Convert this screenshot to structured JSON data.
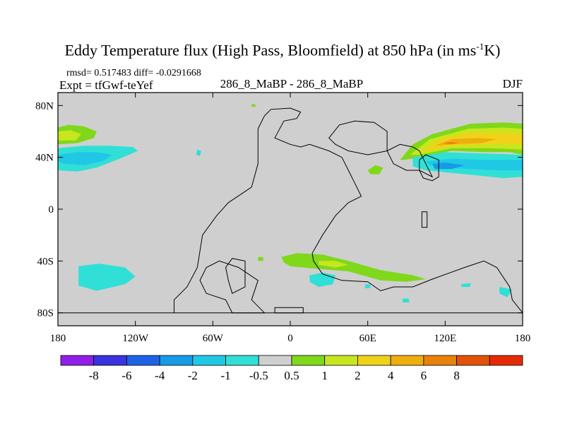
{
  "chart_data": {
    "type": "filled-contour-map",
    "title_main": "Eddy Temperature flux (High Pass, Bloomfield) at 850 hPa (in ms",
    "title_sup": "-1",
    "title_end": "K)",
    "stats": "rmsd= 0.517483 diff= -0.0291668",
    "experiment": "Expt = tfGwf-teYef",
    "center_label": "286_8_MaBP - 286_8_MaBP",
    "season": "DJF",
    "lon_range": [
      -180,
      180
    ],
    "lat_range": [
      -90,
      90
    ],
    "x_ticks": [
      {
        "lon": -180,
        "label": "180"
      },
      {
        "lon": -120,
        "label": "120W"
      },
      {
        "lon": -60,
        "label": "60W"
      },
      {
        "lon": 0,
        "label": "0"
      },
      {
        "lon": 60,
        "label": "60E"
      },
      {
        "lon": 120,
        "label": "120E"
      },
      {
        "lon": 180,
        "label": "180"
      }
    ],
    "y_ticks": [
      {
        "lat": 80,
        "label": "80N"
      },
      {
        "lat": 40,
        "label": "40N"
      },
      {
        "lat": 0,
        "label": "0"
      },
      {
        "lat": -40,
        "label": "40S"
      },
      {
        "lat": -80,
        "label": "80S"
      }
    ],
    "colorbar": {
      "colors": [
        "#8f1fe6",
        "#3a33e0",
        "#1e63e6",
        "#169be6",
        "#20c8e6",
        "#30e0d6",
        "#cfcfcf",
        "#7fd81a",
        "#c8e61e",
        "#f0d21a",
        "#eeae0e",
        "#e8820a",
        "#e25208",
        "#e62a06"
      ],
      "labels": [
        "-8",
        "-6",
        "-4",
        "-2",
        "-1",
        "-0.5",
        "0.5",
        "1",
        "2",
        "4",
        "6",
        "8"
      ]
    },
    "regions": [
      {
        "name": "region-nh-pacific-positive-band",
        "fill": "#7fd81a",
        "points": [
          [
            -180,
            63
          ],
          [
            -172,
            65
          ],
          [
            -160,
            64
          ],
          [
            -150,
            60
          ],
          [
            -152,
            55
          ],
          [
            -165,
            51
          ],
          [
            -180,
            50
          ]
        ]
      },
      {
        "name": "region-nh-pacific-positive-core",
        "fill": "#c8e61e",
        "points": [
          [
            -180,
            60
          ],
          [
            -170,
            61
          ],
          [
            -162,
            58
          ],
          [
            -166,
            53
          ],
          [
            -180,
            53
          ]
        ]
      },
      {
        "name": "region-nh-pacific-negative-band",
        "fill": "#30e0d6",
        "points": [
          [
            -180,
            47
          ],
          [
            -160,
            49
          ],
          [
            -140,
            49
          ],
          [
            -122,
            48
          ],
          [
            -118,
            45
          ],
          [
            -132,
            39
          ],
          [
            -150,
            32
          ],
          [
            -165,
            29
          ],
          [
            -180,
            30
          ]
        ]
      },
      {
        "name": "region-nh-pacific-negative-core",
        "fill": "#20c8e6",
        "points": [
          [
            -180,
            42
          ],
          [
            -165,
            44
          ],
          [
            -150,
            44
          ],
          [
            -138,
            42
          ],
          [
            -145,
            37
          ],
          [
            -160,
            34
          ],
          [
            -175,
            35
          ],
          [
            -180,
            37
          ]
        ]
      },
      {
        "name": "region-nh-small-negative-patch",
        "fill": "#30e0d6",
        "points": [
          [
            -72,
            46
          ],
          [
            -69,
            45
          ],
          [
            -70,
            41
          ],
          [
            -73,
            42
          ]
        ]
      },
      {
        "name": "region-arctic-positive-dot",
        "fill": "#7fd81a",
        "points": [
          [
            -30,
            81
          ],
          [
            -27,
            81
          ],
          [
            -27,
            79
          ],
          [
            -30,
            79
          ]
        ]
      },
      {
        "name": "region-nh-eastern-positive-band",
        "fill": "#7fd81a",
        "points": [
          [
            85,
            38
          ],
          [
            95,
            50
          ],
          [
            110,
            58
          ],
          [
            140,
            66
          ],
          [
            165,
            67
          ],
          [
            180,
            66
          ],
          [
            180,
            42
          ],
          [
            170,
            44
          ],
          [
            150,
            44
          ],
          [
            125,
            45
          ],
          [
            100,
            40
          ],
          [
            88,
            38
          ]
        ]
      },
      {
        "name": "region-nh-eastern-positive-mid",
        "fill": "#c8e61e",
        "points": [
          [
            93,
            42
          ],
          [
            108,
            54
          ],
          [
            138,
            62
          ],
          [
            165,
            63
          ],
          [
            180,
            62
          ],
          [
            180,
            46
          ],
          [
            155,
            47
          ],
          [
            125,
            47
          ],
          [
            100,
            42
          ]
        ]
      },
      {
        "name": "region-nh-eastern-positive-high",
        "fill": "#f0d21a",
        "points": [
          [
            100,
            44
          ],
          [
            118,
            55
          ],
          [
            140,
            59
          ],
          [
            165,
            59
          ],
          [
            180,
            58
          ],
          [
            180,
            50
          ],
          [
            155,
            50
          ],
          [
            125,
            49
          ],
          [
            105,
            45
          ]
        ]
      },
      {
        "name": "region-nh-eastern-positive-core",
        "fill": "#eeae0e",
        "points": [
          [
            112,
            49
          ],
          [
            125,
            54
          ],
          [
            145,
            55
          ],
          [
            160,
            54
          ],
          [
            148,
            51
          ],
          [
            125,
            50
          ]
        ]
      },
      {
        "name": "region-nh-eastern-positive-peak",
        "fill": "#e8820a",
        "points": [
          [
            118,
            51
          ],
          [
            125,
            52
          ],
          [
            130,
            51
          ],
          [
            124,
            50
          ]
        ]
      },
      {
        "name": "region-nh-eastern-negative-band",
        "fill": "#30e0d6",
        "points": [
          [
            95,
            40
          ],
          [
            120,
            44
          ],
          [
            150,
            43
          ],
          [
            180,
            42
          ],
          [
            180,
            25
          ],
          [
            165,
            24
          ],
          [
            145,
            26
          ],
          [
            125,
            28
          ],
          [
            105,
            30
          ],
          [
            95,
            33
          ]
        ]
      },
      {
        "name": "region-nh-eastern-negative-core",
        "fill": "#20c8e6",
        "points": [
          [
            105,
            37
          ],
          [
            125,
            39
          ],
          [
            150,
            38
          ],
          [
            180,
            38
          ],
          [
            180,
            30
          ],
          [
            160,
            30
          ],
          [
            140,
            31
          ],
          [
            120,
            32
          ],
          [
            108,
            34
          ]
        ]
      },
      {
        "name": "region-nh-eastern-negative-deep",
        "fill": "#169be6",
        "points": [
          [
            110,
            35
          ],
          [
            120,
            36
          ],
          [
            135,
            34
          ],
          [
            125,
            31
          ],
          [
            112,
            31
          ]
        ]
      },
      {
        "name": "region-nh-small-positive-patch",
        "fill": "#7fd81a",
        "points": [
          [
            60,
            30
          ],
          [
            66,
            34
          ],
          [
            72,
            32
          ],
          [
            69,
            27
          ],
          [
            62,
            27
          ]
        ]
      },
      {
        "name": "region-sh-positive-band",
        "fill": "#7fd81a",
        "points": [
          [
            -7,
            -37
          ],
          [
            5,
            -34
          ],
          [
            25,
            -35
          ],
          [
            45,
            -40
          ],
          [
            70,
            -47
          ],
          [
            95,
            -51
          ],
          [
            105,
            -54
          ],
          [
            90,
            -56
          ],
          [
            70,
            -55
          ],
          [
            45,
            -48
          ],
          [
            20,
            -46
          ],
          [
            0,
            -44
          ],
          [
            -5,
            -41
          ]
        ]
      },
      {
        "name": "region-sh-positive-core",
        "fill": "#c8e61e",
        "points": [
          [
            22,
            -40
          ],
          [
            35,
            -40
          ],
          [
            45,
            -43
          ],
          [
            35,
            -45
          ],
          [
            22,
            -43
          ]
        ]
      },
      {
        "name": "region-sh-positive-dot",
        "fill": "#7fd81a",
        "points": [
          [
            -25,
            -37
          ],
          [
            -21,
            -37
          ],
          [
            -21,
            -40
          ],
          [
            -25,
            -40
          ]
        ]
      },
      {
        "name": "region-sh-negative-patch-atlantic",
        "fill": "#30e0d6",
        "points": [
          [
            15,
            -51
          ],
          [
            25,
            -49
          ],
          [
            35,
            -51
          ],
          [
            33,
            -58
          ],
          [
            22,
            -60
          ],
          [
            15,
            -56
          ]
        ]
      },
      {
        "name": "region-sh-negative-patch-pacific",
        "fill": "#30e0d6",
        "points": [
          [
            -164,
            -44
          ],
          [
            -148,
            -42
          ],
          [
            -128,
            -45
          ],
          [
            -120,
            -52
          ],
          [
            -128,
            -58
          ],
          [
            -150,
            -63
          ],
          [
            -164,
            -59
          ]
        ]
      },
      {
        "name": "region-sh-negative-dot-1",
        "fill": "#30e0d6",
        "points": [
          [
            58,
            -58
          ],
          [
            62,
            -58
          ],
          [
            62,
            -61
          ],
          [
            58,
            -61
          ]
        ]
      },
      {
        "name": "region-sh-negative-dot-2",
        "fill": "#30e0d6",
        "points": [
          [
            87,
            -69
          ],
          [
            92,
            -69
          ],
          [
            92,
            -72
          ],
          [
            87,
            -72
          ]
        ]
      },
      {
        "name": "region-sh-negative-dot-3",
        "fill": "#30e0d6",
        "points": [
          [
            132,
            -58
          ],
          [
            140,
            -57
          ],
          [
            139,
            -60
          ],
          [
            133,
            -60
          ]
        ]
      },
      {
        "name": "region-sh-negative-dot-4",
        "fill": "#30e0d6",
        "points": [
          [
            162,
            -60
          ],
          [
            172,
            -62
          ],
          [
            168,
            -68
          ],
          [
            162,
            -65
          ]
        ]
      }
    ],
    "outlines": [
      {
        "name": "coastline-main-continent",
        "points": [
          [
            -180,
            -80
          ],
          [
            -90,
            -80
          ],
          [
            -90,
            -70
          ],
          [
            -80,
            -60
          ],
          [
            -72,
            -45
          ],
          [
            -68,
            -20
          ],
          [
            -57,
            -5
          ],
          [
            -48,
            5
          ],
          [
            -30,
            17
          ],
          [
            -25,
            35
          ],
          [
            -25,
            62
          ],
          [
            -20,
            72
          ],
          [
            -15,
            77
          ],
          [
            0,
            78
          ],
          [
            8,
            75
          ],
          [
            5,
            70
          ],
          [
            -5,
            68
          ],
          [
            -12,
            55
          ],
          [
            0,
            50
          ],
          [
            8,
            48
          ],
          [
            15,
            50
          ],
          [
            30,
            45
          ],
          [
            40,
            40
          ],
          [
            45,
            30
          ],
          [
            50,
            20
          ],
          [
            55,
            10
          ],
          [
            45,
            5
          ],
          [
            35,
            -5
          ],
          [
            25,
            -20
          ],
          [
            17,
            -34
          ],
          [
            18,
            -40
          ],
          [
            25,
            -50
          ],
          [
            40,
            -55
          ],
          [
            60,
            -56
          ],
          [
            70,
            -63
          ],
          [
            80,
            -60
          ],
          [
            95,
            -60
          ],
          [
            110,
            -54
          ],
          [
            135,
            -45
          ],
          [
            150,
            -40
          ],
          [
            160,
            -45
          ],
          [
            170,
            -60
          ],
          [
            172,
            -70
          ],
          [
            180,
            -80
          ]
        ]
      },
      {
        "name": "coastline-northern-block",
        "points": [
          [
            30,
            55
          ],
          [
            38,
            65
          ],
          [
            50,
            68
          ],
          [
            65,
            67
          ],
          [
            75,
            60
          ],
          [
            75,
            45
          ],
          [
            80,
            35
          ],
          [
            90,
            30
          ],
          [
            100,
            30
          ],
          [
            110,
            25
          ],
          [
            105,
            35
          ],
          [
            100,
            45
          ],
          [
            95,
            48
          ],
          [
            85,
            50
          ],
          [
            75,
            45
          ],
          [
            60,
            42
          ],
          [
            45,
            45
          ],
          [
            35,
            50
          ]
        ]
      },
      {
        "name": "coastline-southern-inner",
        "points": [
          [
            -65,
            -65
          ],
          [
            -50,
            -70
          ],
          [
            -45,
            -80
          ],
          [
            -20,
            -80
          ],
          [
            -30,
            -70
          ],
          [
            -25,
            -55
          ],
          [
            -40,
            -45
          ],
          [
            -55,
            -40
          ],
          [
            -65,
            -45
          ],
          [
            -70,
            -55
          ]
        ]
      },
      {
        "name": "coastline-southern-peninsula",
        "points": [
          [
            -45,
            -65
          ],
          [
            -35,
            -60
          ],
          [
            -35,
            -40
          ],
          [
            -45,
            -38
          ],
          [
            -50,
            -45
          ],
          [
            -48,
            -55
          ]
        ]
      },
      {
        "name": "coastline-southern-strip",
        "points": [
          [
            -12,
            -80
          ],
          [
            10,
            -80
          ],
          [
            10,
            -76
          ],
          [
            -12,
            -76
          ]
        ]
      },
      {
        "name": "coastline-small-island",
        "points": [
          [
            102,
            -2
          ],
          [
            106,
            -2
          ],
          [
            106,
            -14
          ],
          [
            102,
            -14
          ]
        ]
      },
      {
        "name": "coastline-east-boundary",
        "points": [
          [
            100,
            38
          ],
          [
            105,
            42
          ],
          [
            115,
            38
          ],
          [
            115,
            25
          ],
          [
            110,
            22
          ],
          [
            103,
            24
          ],
          [
            100,
            30
          ]
        ]
      }
    ]
  }
}
